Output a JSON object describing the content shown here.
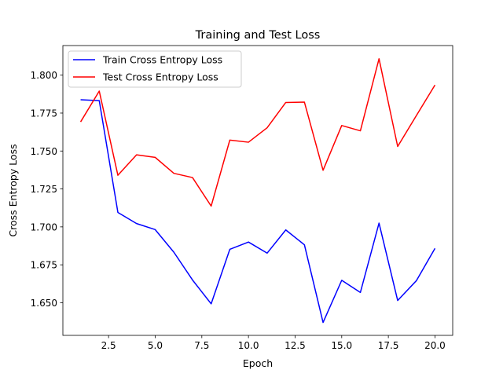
{
  "chart_data": {
    "type": "line",
    "title": "Training and Test Loss",
    "xlabel": "Epoch",
    "ylabel": "Cross Entropy Loss",
    "xlim": [
      0.05,
      20.95
    ],
    "ylim": [
      1.6285,
      1.8195
    ],
    "xticks": [
      2.5,
      5.0,
      7.5,
      10.0,
      12.5,
      15.0,
      17.5,
      20.0
    ],
    "xtick_labels": [
      "2.5",
      "5.0",
      "7.5",
      "10.0",
      "12.5",
      "15.0",
      "17.5",
      "20.0"
    ],
    "yticks": [
      1.65,
      1.675,
      1.7,
      1.725,
      1.75,
      1.775,
      1.8
    ],
    "ytick_labels": [
      "1.650",
      "1.675",
      "1.700",
      "1.725",
      "1.750",
      "1.775",
      "1.800"
    ],
    "grid": false,
    "legend_position": "top-left",
    "x": [
      1,
      2,
      3,
      4,
      5,
      6,
      7,
      8,
      9,
      10,
      11,
      12,
      13,
      14,
      15,
      16,
      17,
      18,
      19,
      20
    ],
    "series": [
      {
        "name": "Train Cross Entropy Loss",
        "color": "#0000ff",
        "values": [
          1.7838,
          1.7832,
          1.7095,
          1.7022,
          1.6982,
          1.6833,
          1.665,
          1.6493,
          1.6852,
          1.69,
          1.6827,
          1.698,
          1.6882,
          1.637,
          1.6648,
          1.6568,
          1.7025,
          1.6515,
          1.6645,
          1.6858
        ]
      },
      {
        "name": "Test Cross Entropy Loss",
        "color": "#ff0000",
        "values": [
          1.7692,
          1.7895,
          1.734,
          1.7475,
          1.7458,
          1.7353,
          1.7325,
          1.7137,
          1.7572,
          1.7558,
          1.7653,
          1.782,
          1.7822,
          1.7373,
          1.7668,
          1.7633,
          1.8108,
          1.753,
          1.7733,
          1.7935
        ]
      }
    ]
  }
}
